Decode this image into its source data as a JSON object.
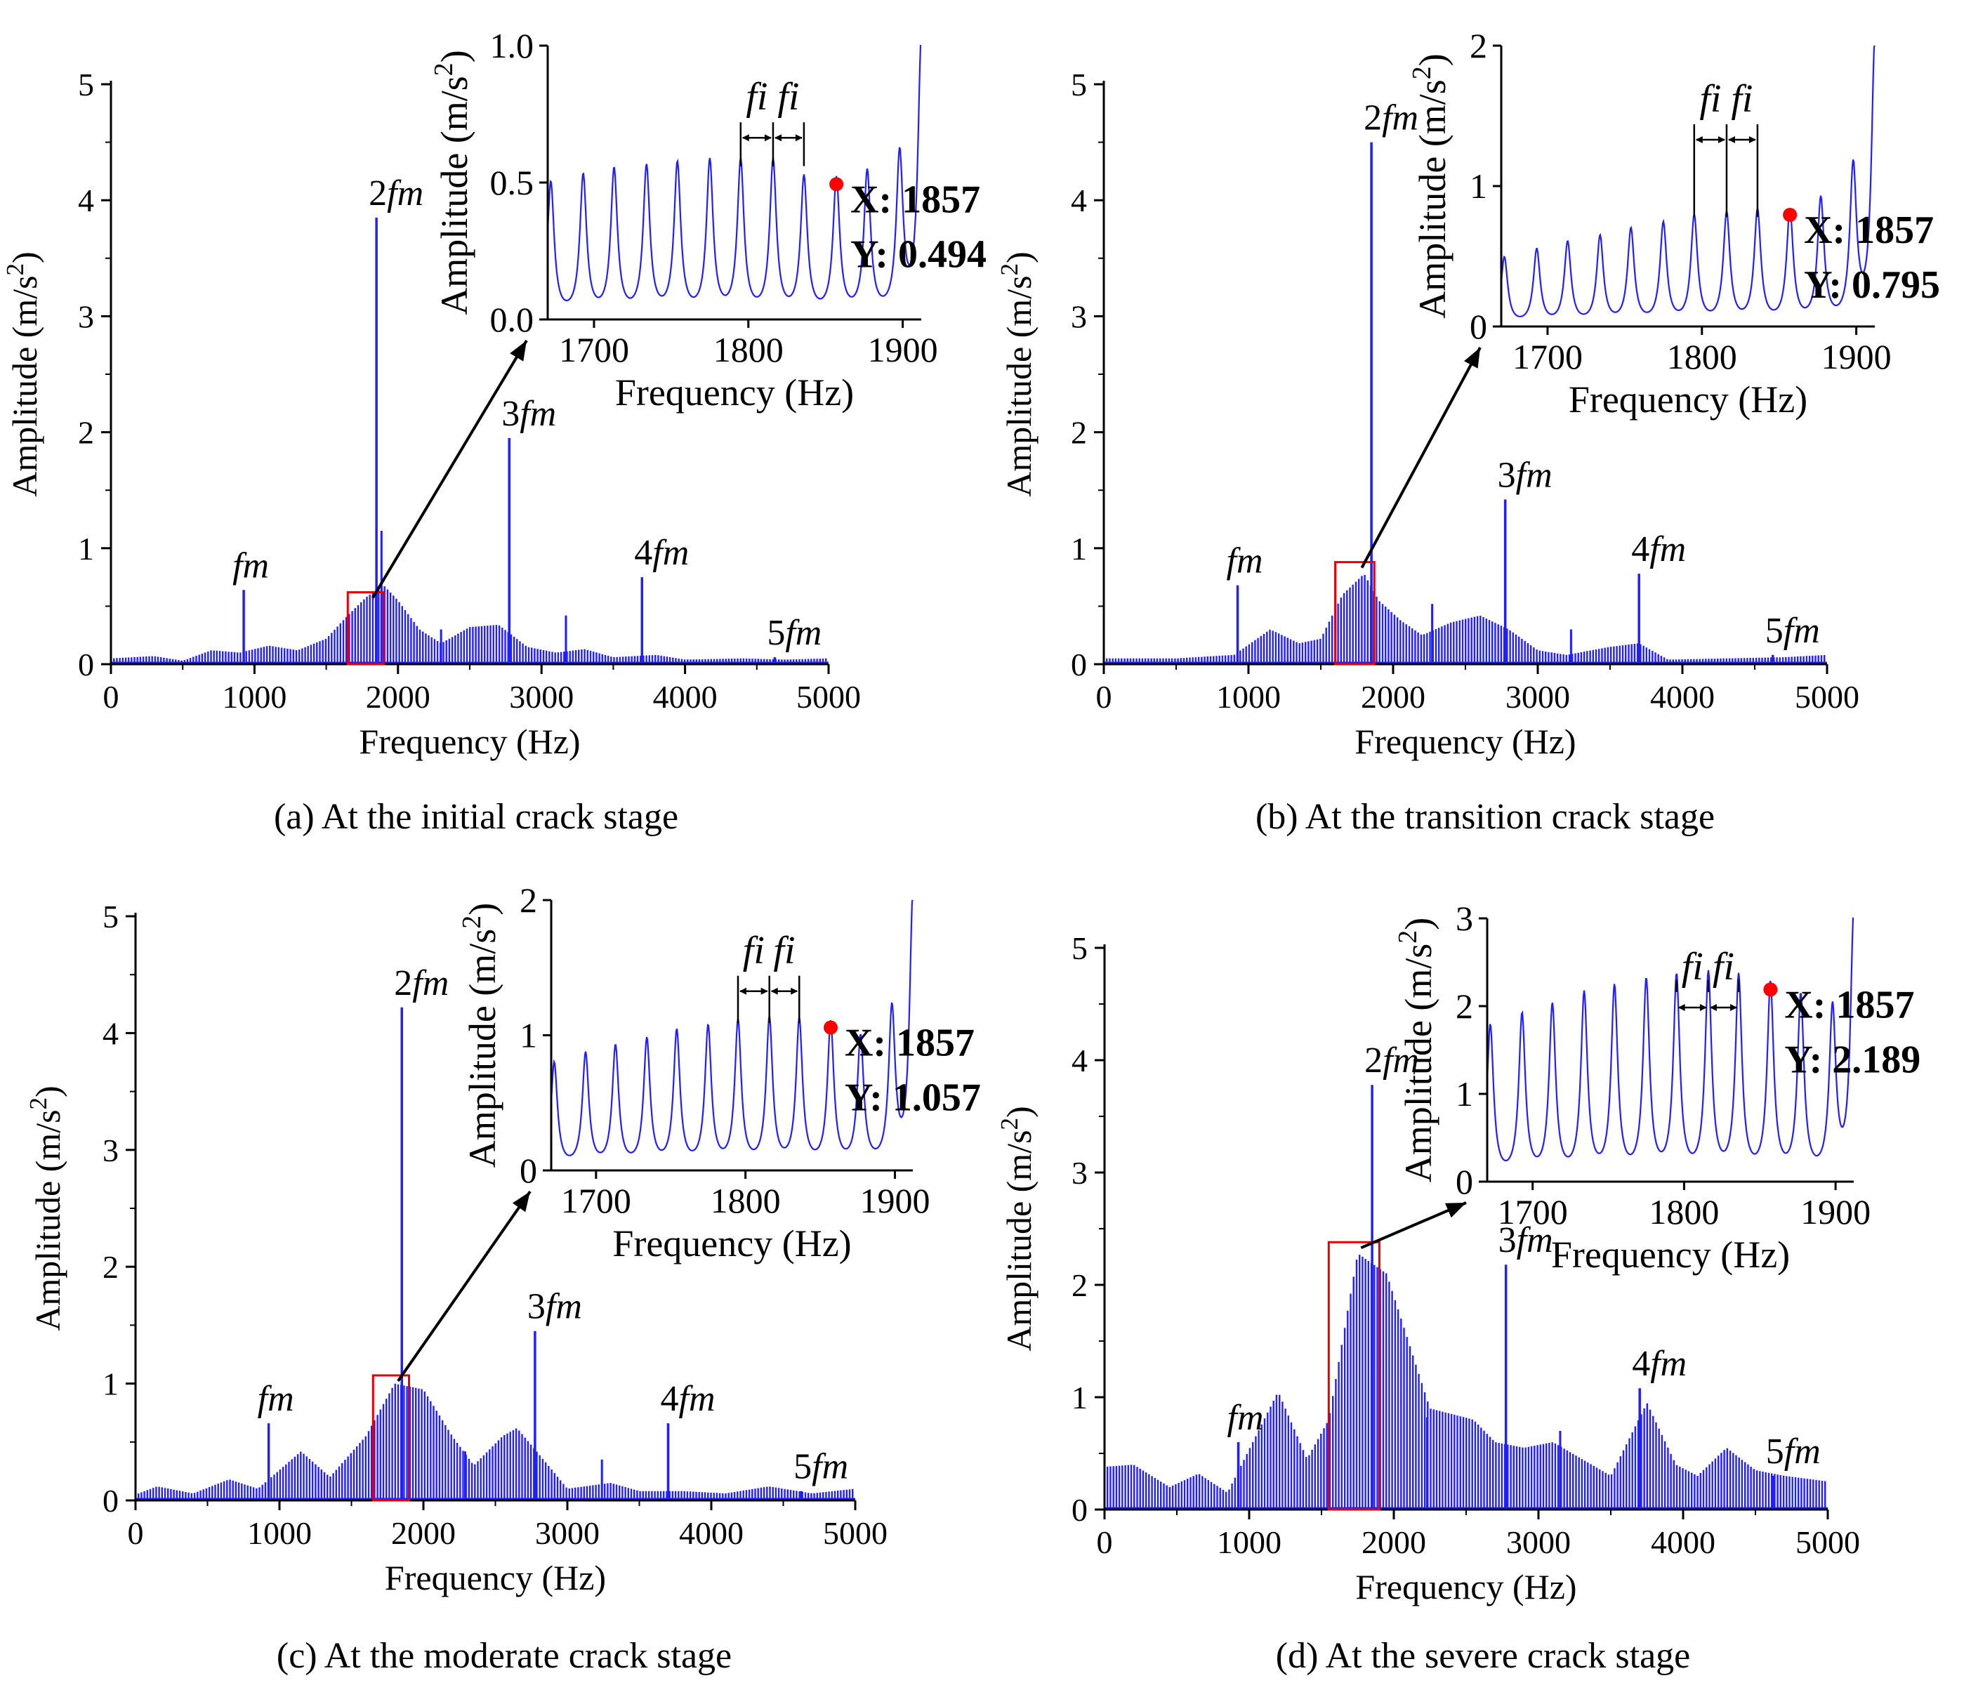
{
  "figure": {
    "colors": {
      "signal": "#1f1fff",
      "box": "#e60000",
      "marker": "#ff0000",
      "axis": "#000000"
    },
    "marker_label": "X",
    "marker_value_label": "Y"
  },
  "chart_data": [
    {
      "id": "a",
      "type": "line",
      "caption": "(a) At the initial crack stage",
      "xlabel": "Frequency (Hz)",
      "ylabel": "Amplitude (m/s2)",
      "xlim": [
        0,
        5000
      ],
      "ylim": [
        0,
        5
      ],
      "xticks": [
        0,
        1000,
        2000,
        3000,
        4000,
        5000
      ],
      "yticks": [
        0,
        1,
        2,
        3,
        4,
        5
      ],
      "harmonics": [
        {
          "label": "fm",
          "multiple": "",
          "x": 925,
          "y": 0.64
        },
        {
          "label": "fm",
          "multiple": "2",
          "x": 1850,
          "y": 3.85
        },
        {
          "label": "fm",
          "multiple": "3",
          "x": 2775,
          "y": 1.95
        },
        {
          "label": "fm",
          "multiple": "4",
          "x": 3700,
          "y": 0.75
        },
        {
          "label": "fm",
          "multiple": "5",
          "x": 4625,
          "y": 0.06
        }
      ],
      "envelope": [
        [
          0,
          0.05
        ],
        [
          300,
          0.07
        ],
        [
          500,
          0.03
        ],
        [
          700,
          0.12
        ],
        [
          900,
          0.1
        ],
        [
          1100,
          0.16
        ],
        [
          1300,
          0.12
        ],
        [
          1500,
          0.22
        ],
        [
          1650,
          0.42
        ],
        [
          1780,
          0.58
        ],
        [
          1900,
          0.68
        ],
        [
          2000,
          0.55
        ],
        [
          2150,
          0.3
        ],
        [
          2300,
          0.18
        ],
        [
          2500,
          0.32
        ],
        [
          2700,
          0.34
        ],
        [
          2900,
          0.15
        ],
        [
          3100,
          0.1
        ],
        [
          3300,
          0.13
        ],
        [
          3500,
          0.06
        ],
        [
          3800,
          0.08
        ],
        [
          4000,
          0.04
        ],
        [
          4400,
          0.05
        ],
        [
          4700,
          0.04
        ],
        [
          5000,
          0.05
        ]
      ],
      "extra_spikes": [
        [
          1885,
          1.15
        ],
        [
          3170,
          0.42
        ],
        [
          2300,
          0.3
        ]
      ],
      "zoom_box": {
        "x0": 1650,
        "x1": 1900,
        "y0": 0,
        "y1": 0.62
      },
      "inset": {
        "xlabel": "Frequency (Hz)",
        "ylabel": "Amplitude (m/s2)",
        "xlim": [
          1670,
          1912
        ],
        "ylim": [
          0,
          1.0
        ],
        "xticks": [
          1700,
          1800,
          1900
        ],
        "yticks": [
          "0.0",
          "0.5",
          "1.0"
        ],
        "peaks_x": [
          1672,
          1693,
          1713,
          1734,
          1754,
          1775,
          1795,
          1816,
          1836,
          1857,
          1877,
          1898,
          1912
        ],
        "peaks_y": [
          0.49,
          0.51,
          0.53,
          0.54,
          0.55,
          0.56,
          0.56,
          0.56,
          0.5,
          0.494,
          0.52,
          0.58,
          1.0
        ],
        "fi_label": "fi",
        "marker": {
          "x": 1857,
          "y": 0.494,
          "x_text": "1857",
          "y_text": "0.494"
        }
      }
    },
    {
      "id": "b",
      "type": "line",
      "caption": "(b) At the transition crack stage",
      "xlabel": "Frequency (Hz)",
      "ylabel": "Amplitude (m/s2)",
      "xlim": [
        0,
        5000
      ],
      "ylim": [
        0,
        5
      ],
      "xticks": [
        0,
        1000,
        2000,
        3000,
        4000,
        5000
      ],
      "yticks": [
        0,
        1,
        2,
        3,
        4,
        5
      ],
      "harmonics": [
        {
          "label": "fm",
          "multiple": "",
          "x": 925,
          "y": 0.68
        },
        {
          "label": "fm",
          "multiple": "2",
          "x": 1850,
          "y": 4.5
        },
        {
          "label": "fm",
          "multiple": "3",
          "x": 2775,
          "y": 1.42
        },
        {
          "label": "fm",
          "multiple": "4",
          "x": 3700,
          "y": 0.78
        },
        {
          "label": "fm",
          "multiple": "5",
          "x": 4625,
          "y": 0.08
        }
      ],
      "envelope": [
        [
          0,
          0.05
        ],
        [
          500,
          0.05
        ],
        [
          900,
          0.08
        ],
        [
          1150,
          0.3
        ],
        [
          1350,
          0.18
        ],
        [
          1500,
          0.22
        ],
        [
          1650,
          0.6
        ],
        [
          1800,
          0.78
        ],
        [
          1900,
          0.55
        ],
        [
          2050,
          0.38
        ],
        [
          2200,
          0.25
        ],
        [
          2400,
          0.36
        ],
        [
          2600,
          0.42
        ],
        [
          2800,
          0.3
        ],
        [
          3000,
          0.12
        ],
        [
          3200,
          0.08
        ],
        [
          3500,
          0.15
        ],
        [
          3700,
          0.18
        ],
        [
          3900,
          0.04
        ],
        [
          4300,
          0.05
        ],
        [
          4700,
          0.06
        ],
        [
          5000,
          0.08
        ]
      ],
      "extra_spikes": [
        [
          2270,
          0.52
        ],
        [
          3230,
          0.3
        ]
      ],
      "zoom_box": {
        "x0": 1600,
        "x1": 1870,
        "y0": 0,
        "y1": 0.88
      },
      "inset": {
        "xlabel": "Frequency (Hz)",
        "ylabel": "Amplitude (m/s2)",
        "xlim": [
          1670,
          1912
        ],
        "ylim": [
          0,
          2
        ],
        "xticks": [
          1700,
          1800,
          1900
        ],
        "yticks": [
          "0",
          "1",
          "2"
        ],
        "peaks_x": [
          1672,
          1693,
          1713,
          1734,
          1754,
          1775,
          1795,
          1816,
          1836,
          1857,
          1877,
          1898,
          1912
        ],
        "peaks_y": [
          0.48,
          0.53,
          0.58,
          0.62,
          0.67,
          0.71,
          0.76,
          0.78,
          0.8,
          0.795,
          0.88,
          1.1,
          2.0
        ],
        "fi_label": "fi",
        "marker": {
          "x": 1857,
          "y": 0.795,
          "x_text": "1857",
          "y_text": "0.795"
        }
      }
    },
    {
      "id": "c",
      "type": "line",
      "caption": "(c) At the moderate crack stage",
      "xlabel": "Frequency (Hz)",
      "ylabel": "Amplitude (m/s2)",
      "xlim": [
        0,
        5000
      ],
      "ylim": [
        0,
        5
      ],
      "xticks": [
        0,
        1000,
        2000,
        3000,
        4000,
        5000
      ],
      "yticks": [
        0,
        1,
        2,
        3,
        4,
        5
      ],
      "harmonics": [
        {
          "label": "fm",
          "multiple": "",
          "x": 925,
          "y": 0.66
        },
        {
          "label": "fm",
          "multiple": "2",
          "x": 1850,
          "y": 4.22
        },
        {
          "label": "fm",
          "multiple": "3",
          "x": 2775,
          "y": 1.45
        },
        {
          "label": "fm",
          "multiple": "4",
          "x": 3700,
          "y": 0.66
        },
        {
          "label": "fm",
          "multiple": "5",
          "x": 4625,
          "y": 0.08
        }
      ],
      "envelope": [
        [
          0,
          0.05
        ],
        [
          150,
          0.12
        ],
        [
          400,
          0.06
        ],
        [
          650,
          0.18
        ],
        [
          850,
          0.1
        ],
        [
          1150,
          0.42
        ],
        [
          1350,
          0.2
        ],
        [
          1600,
          0.55
        ],
        [
          1800,
          1.0
        ],
        [
          2000,
          0.95
        ],
        [
          2200,
          0.55
        ],
        [
          2350,
          0.3
        ],
        [
          2550,
          0.55
        ],
        [
          2650,
          0.62
        ],
        [
          2800,
          0.4
        ],
        [
          3000,
          0.1
        ],
        [
          3300,
          0.15
        ],
        [
          3500,
          0.08
        ],
        [
          3800,
          0.08
        ],
        [
          4100,
          0.06
        ],
        [
          4400,
          0.12
        ],
        [
          4700,
          0.06
        ],
        [
          5000,
          0.1
        ]
      ],
      "extra_spikes": [
        [
          2290,
          0.42
        ],
        [
          3240,
          0.35
        ]
      ],
      "zoom_box": {
        "x0": 1650,
        "x1": 1900,
        "y0": 0,
        "y1": 1.07
      },
      "inset": {
        "xlabel": "Frequency (Hz)",
        "ylabel": "Amplitude (m/s2)",
        "xlim": [
          1670,
          1912
        ],
        "ylim": [
          0,
          2
        ],
        "xticks": [
          1700,
          1800,
          1900
        ],
        "yticks": [
          "0",
          "1",
          "2"
        ],
        "peaks_x": [
          1672,
          1693,
          1713,
          1734,
          1754,
          1775,
          1795,
          1816,
          1836,
          1857,
          1877,
          1898,
          1912
        ],
        "peaks_y": [
          0.78,
          0.84,
          0.89,
          0.94,
          1.0,
          1.03,
          1.07,
          1.09,
          1.08,
          1.057,
          0.95,
          1.15,
          2.0
        ],
        "fi_label": "fi",
        "marker": {
          "x": 1857,
          "y": 1.057,
          "x_text": "1857",
          "y_text": "1.057"
        }
      }
    },
    {
      "id": "d",
      "type": "line",
      "caption": "(d) At the severe crack stage",
      "xlabel": "Frequency (Hz)",
      "ylabel": "Amplitude (m/s2)",
      "xlim": [
        0,
        5000
      ],
      "ylim": [
        0,
        5
      ],
      "xticks": [
        0,
        1000,
        2000,
        3000,
        4000,
        5000
      ],
      "yticks": [
        0,
        1,
        2,
        3,
        4,
        5
      ],
      "harmonics": [
        {
          "label": "fm",
          "multiple": "",
          "x": 925,
          "y": 0.6
        },
        {
          "label": "fm",
          "multiple": "2",
          "x": 1850,
          "y": 3.78
        },
        {
          "label": "fm",
          "multiple": "3",
          "x": 2775,
          "y": 2.18
        },
        {
          "label": "fm",
          "multiple": "4",
          "x": 3700,
          "y": 1.08
        },
        {
          "label": "fm",
          "multiple": "5",
          "x": 4625,
          "y": 0.3
        }
      ],
      "envelope": [
        [
          0,
          0.38
        ],
        [
          200,
          0.4
        ],
        [
          450,
          0.2
        ],
        [
          650,
          0.32
        ],
        [
          850,
          0.15
        ],
        [
          1200,
          1.05
        ],
        [
          1400,
          0.45
        ],
        [
          1550,
          0.8
        ],
        [
          1750,
          2.28
        ],
        [
          1950,
          2.1
        ],
        [
          2100,
          1.5
        ],
        [
          2250,
          0.9
        ],
        [
          2400,
          0.85
        ],
        [
          2550,
          0.8
        ],
        [
          2700,
          0.6
        ],
        [
          2900,
          0.55
        ],
        [
          3100,
          0.6
        ],
        [
          3300,
          0.45
        ],
        [
          3500,
          0.3
        ],
        [
          3750,
          0.95
        ],
        [
          3950,
          0.4
        ],
        [
          4100,
          0.3
        ],
        [
          4300,
          0.55
        ],
        [
          4500,
          0.35
        ],
        [
          4700,
          0.3
        ],
        [
          5000,
          0.25
        ]
      ],
      "extra_spikes": [
        [
          2230,
          0.82
        ],
        [
          3150,
          0.7
        ]
      ],
      "zoom_box": {
        "x0": 1550,
        "x1": 1900,
        "y0": 0,
        "y1": 2.38
      },
      "inset": {
        "xlabel": "Frequency (Hz)",
        "ylabel": "Amplitude (m/s2)",
        "xlim": [
          1670,
          1912
        ],
        "ylim": [
          0,
          3
        ],
        "xticks": [
          1700,
          1800,
          1900
        ],
        "yticks": [
          "0",
          "1",
          "2",
          "3"
        ],
        "peaks_x": [
          1672,
          1693,
          1713,
          1734,
          1754,
          1775,
          1795,
          1816,
          1836,
          1857,
          1877,
          1898,
          1912
        ],
        "peaks_y": [
          1.75,
          1.85,
          1.95,
          2.08,
          2.15,
          2.22,
          2.27,
          2.3,
          2.27,
          2.189,
          2.05,
          1.9,
          3.0
        ],
        "fi_label": "fi",
        "marker": {
          "x": 1857,
          "y": 2.189,
          "x_text": "1857",
          "y_text": "2.189"
        }
      }
    }
  ]
}
